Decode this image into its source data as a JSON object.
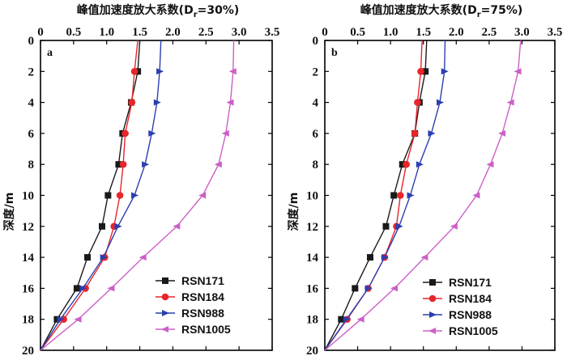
{
  "chart_data": [
    {
      "type": "line",
      "panel_label": "a",
      "title": "峰值加速度放大系数(D",
      "title_sub": "r",
      "title_tail": "=30%)",
      "xlabel": "",
      "ylabel": "深度/m",
      "xlim": [
        0,
        3.5
      ],
      "ylim": [
        0,
        20
      ],
      "x_ticks": [
        "0",
        "0.5",
        "1.0",
        "1.5",
        "2.0",
        "2.5",
        "3.0",
        "3.5"
      ],
      "y_ticks": [
        "0",
        "2",
        "4",
        "6",
        "8",
        "10",
        "12",
        "14",
        "16",
        "18",
        "20"
      ],
      "legend_position": "bottom-right",
      "depth": [
        0,
        2,
        4,
        6,
        8,
        10,
        12,
        14,
        16,
        18,
        20
      ],
      "series": [
        {
          "name": "RSN171",
          "color": "#1a1a1a",
          "marker": "square",
          "values": [
            1.5,
            1.47,
            1.37,
            1.24,
            1.18,
            1.02,
            0.93,
            0.71,
            0.55,
            0.25,
            0.0
          ]
        },
        {
          "name": "RSN184",
          "color": "#e8252b",
          "marker": "circle",
          "values": [
            1.47,
            1.42,
            1.38,
            1.28,
            1.25,
            1.2,
            1.11,
            0.97,
            0.68,
            0.35,
            0.0
          ]
        },
        {
          "name": "RSN988",
          "color": "#2a3fb0",
          "marker": "triangle-right",
          "values": [
            1.82,
            1.8,
            1.76,
            1.68,
            1.58,
            1.42,
            1.17,
            0.95,
            0.64,
            0.3,
            0.0
          ]
        },
        {
          "name": "RSN1005",
          "color": "#cc5fc7",
          "marker": "triangle-left",
          "values": [
            2.92,
            2.91,
            2.87,
            2.8,
            2.69,
            2.45,
            2.06,
            1.55,
            1.07,
            0.57,
            0.0
          ]
        }
      ]
    },
    {
      "type": "line",
      "panel_label": "b",
      "title": "峰值加速度放大系数(D",
      "title_sub": "r",
      "title_tail": "=75%)",
      "xlabel": "",
      "ylabel": "深度/m",
      "xlim": [
        0,
        3.5
      ],
      "ylim": [
        0,
        20
      ],
      "x_ticks": [
        "0",
        "0.5",
        "1.0",
        "1.5",
        "2.0",
        "2.5",
        "3.0",
        "3.5"
      ],
      "y_ticks": [
        "0",
        "2",
        "4",
        "6",
        "8",
        "10",
        "12",
        "14",
        "16",
        "18",
        "20"
      ],
      "legend_position": "bottom-right",
      "depth": [
        0,
        2,
        4,
        6,
        8,
        10,
        12,
        14,
        16,
        18,
        20
      ],
      "series": [
        {
          "name": "RSN171",
          "color": "#1a1a1a",
          "marker": "square",
          "values": [
            1.55,
            1.53,
            1.44,
            1.37,
            1.18,
            1.05,
            0.93,
            0.69,
            0.46,
            0.25,
            0.0
          ]
        },
        {
          "name": "RSN184",
          "color": "#e8252b",
          "marker": "circle",
          "values": [
            1.48,
            1.46,
            1.41,
            1.37,
            1.24,
            1.15,
            1.09,
            0.91,
            0.66,
            0.34,
            0.0
          ]
        },
        {
          "name": "RSN988",
          "color": "#2a3fb0",
          "marker": "triangle-right",
          "values": [
            1.83,
            1.82,
            1.75,
            1.62,
            1.44,
            1.3,
            1.13,
            0.91,
            0.66,
            0.33,
            0.0
          ]
        },
        {
          "name": "RSN1005",
          "color": "#cc5fc7",
          "marker": "triangle-left",
          "values": [
            2.98,
            2.94,
            2.83,
            2.7,
            2.52,
            2.31,
            1.97,
            1.52,
            1.06,
            0.55,
            0.0
          ]
        }
      ]
    }
  ]
}
